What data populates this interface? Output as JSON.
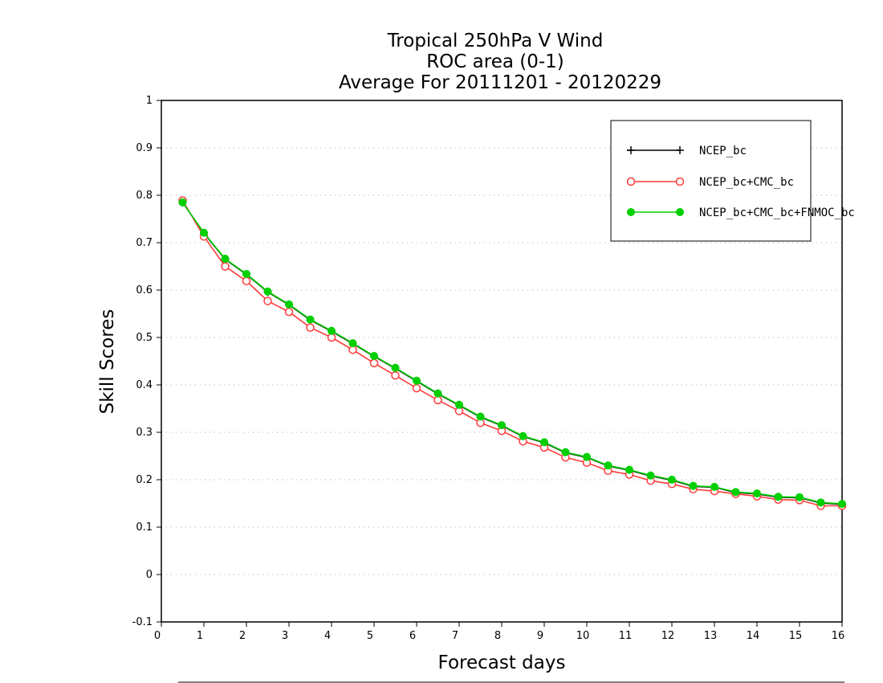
{
  "chart_data": {
    "type": "line",
    "title": [
      "Tropical 250hPa V Wind",
      "ROC area (0-1)",
      "Average For 20111201 - 20120229"
    ],
    "xlabel": "Forecast days",
    "ylabel": "Skill Scores",
    "xlim": [
      0,
      16
    ],
    "ylim": [
      -0.1,
      1
    ],
    "xticks": [
      0,
      1,
      2,
      3,
      4,
      5,
      6,
      7,
      8,
      9,
      10,
      11,
      12,
      13,
      14,
      15,
      16
    ],
    "yticks": [
      -0.1,
      0,
      0.1,
      0.2,
      0.3,
      0.4,
      0.5,
      0.6,
      0.7,
      0.8,
      0.9,
      1
    ],
    "ytick_labels": [
      "-0.1",
      "0",
      "0.1",
      "0.2",
      "0.3",
      "0.4",
      "0.5",
      "0.6",
      "0.7",
      "0.8",
      "0.9",
      "1"
    ],
    "grid": true,
    "legend_position": "top-right",
    "x": [
      0.5,
      1,
      1.5,
      2,
      2.5,
      3,
      3.5,
      4,
      4.5,
      5,
      5.5,
      6,
      6.5,
      7,
      7.5,
      8,
      8.5,
      9,
      9.5,
      10,
      10.5,
      11,
      11.5,
      12,
      12.5,
      13,
      13.5,
      14,
      14.5,
      15,
      15.5,
      16
    ],
    "series": [
      {
        "name": "NCEP_bc",
        "color": "#000000",
        "marker": "plus",
        "values": [
          0.785,
          0.72,
          0.665,
          0.633,
          0.596,
          0.569,
          0.537,
          0.513,
          0.487,
          0.46,
          0.435,
          0.408,
          0.381,
          0.357,
          0.332,
          0.314,
          0.291,
          0.278,
          0.257,
          0.247,
          0.229,
          0.22,
          0.208,
          0.199,
          0.186,
          0.184,
          0.173,
          0.17,
          0.163,
          0.162,
          0.151,
          0.148
        ]
      },
      {
        "name": "NCEP_bc+CMC_bc",
        "color": "#ff3b3b",
        "marker": "open-circle",
        "values": [
          0.789,
          0.713,
          0.65,
          0.619,
          0.577,
          0.554,
          0.521,
          0.5,
          0.474,
          0.446,
          0.42,
          0.393,
          0.368,
          0.345,
          0.32,
          0.303,
          0.281,
          0.268,
          0.247,
          0.236,
          0.219,
          0.211,
          0.198,
          0.191,
          0.18,
          0.176,
          0.17,
          0.165,
          0.158,
          0.157,
          0.145,
          0.145
        ]
      },
      {
        "name": "NCEP_bc+CMC_bc+FNMOC_bc",
        "color": "#00d000",
        "marker": "filled-circle",
        "values": [
          0.785,
          0.721,
          0.666,
          0.634,
          0.597,
          0.57,
          0.538,
          0.514,
          0.488,
          0.461,
          0.436,
          0.409,
          0.382,
          0.358,
          0.333,
          0.315,
          0.292,
          0.279,
          0.258,
          0.248,
          0.23,
          0.221,
          0.209,
          0.2,
          0.187,
          0.185,
          0.174,
          0.171,
          0.164,
          0.163,
          0.152,
          0.149
        ]
      }
    ]
  }
}
